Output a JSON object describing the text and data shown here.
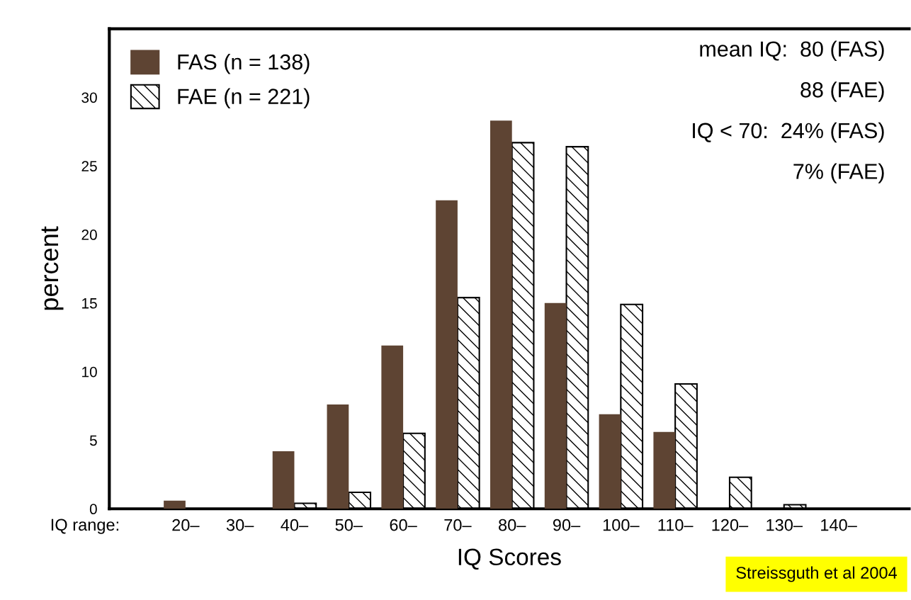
{
  "chart_data": {
    "type": "bar",
    "ylabel": "percent",
    "xlabel": "IQ Scores",
    "categories": [
      "20–",
      "30–",
      "40–",
      "50–",
      "60–",
      "70–",
      "80–",
      "90–",
      "100–",
      "110–",
      "120–",
      "130–",
      "140–"
    ],
    "series": [
      {
        "name": "FAS (n = 138)",
        "color": "#5e4433",
        "values": [
          0.6,
          0,
          4.2,
          7.6,
          11.9,
          22.5,
          28.3,
          15.0,
          6.9,
          5.6,
          0,
          0,
          0
        ]
      },
      {
        "name": "FAE (n = 221)",
        "color": "#000000",
        "values": [
          0,
          0,
          0.4,
          1.2,
          5.5,
          15.4,
          26.7,
          26.4,
          14.9,
          9.1,
          2.3,
          0.3,
          0
        ]
      }
    ],
    "ylim": [
      0,
      35
    ],
    "yticks": [
      0,
      5,
      10,
      15,
      20,
      25,
      30
    ],
    "grid": false,
    "legend": "top left",
    "annotations": [
      "mean IQ:  80 (FAS)",
      "88 (FAE)",
      "IQ < 70:  24% (FAS)",
      "7% (FAE)",
      "IQ range:",
      "Streissguth et al 2004"
    ]
  }
}
